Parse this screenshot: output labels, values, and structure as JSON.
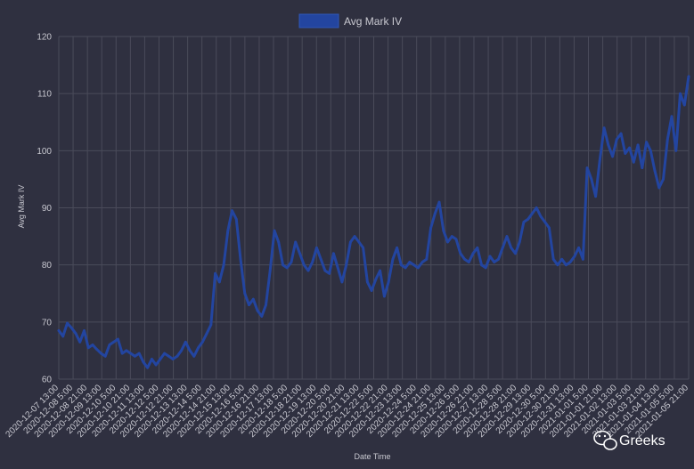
{
  "chart_data": {
    "type": "line",
    "title": "",
    "xlabel": "Date Time",
    "ylabel": "Avg Mark IV",
    "ylim": [
      60,
      120
    ],
    "yticks": [
      60,
      70,
      80,
      90,
      100,
      110,
      120
    ],
    "grid": true,
    "legend_position": "top-center",
    "x_tick_labels": [
      "2020-12-07 13:00",
      "2020-12-08 5:00",
      "2020-12-08 21:00",
      "2020-12-09 13:00",
      "2020-12-10 5:00",
      "2020-12-10 21:00",
      "2020-12-11 13:00",
      "2020-12-12 5:00",
      "2020-12-12 21:00",
      "2020-12-13 13:00",
      "2020-12-14 5:00",
      "2020-12-14 21:00",
      "2020-12-15 13:00",
      "2020-12-16 5:00",
      "2020-12-16 21:00",
      "2020-12-17 13:00",
      "2020-12-18 5:00",
      "2020-12-18 21:00",
      "2020-12-19 13:00",
      "2020-12-20 5:00",
      "2020-12-20 21:00",
      "2020-12-21 13:00",
      "2020-12-22 5:00",
      "2020-12-22 21:00",
      "2020-12-23 13:00",
      "2020-12-24 5:00",
      "2020-12-24 21:00",
      "2020-12-25 13:00",
      "2020-12-26 5:00",
      "2020-12-26 21:00",
      "2020-12-27 13:00",
      "2020-12-28 5:00",
      "2020-12-28 21:00",
      "2020-12-29 13:00",
      "2020-12-30 5:00",
      "2020-12-30 21:00",
      "2020-12-31 13:00",
      "2021-01-01 5:00",
      "2021-01-01 21:00",
      "2021-01-02 13:00",
      "2021-01-03 5:00",
      "2021-01-03 21:00",
      "2021-01-04 13:00",
      "2021-01-05 5:00",
      "2021-01-05 21:00"
    ],
    "series": [
      {
        "name": "Avg Mark IV",
        "color": "#2345a0",
        "values": [
          68.5,
          67.5,
          69.8,
          69.0,
          68.0,
          66.5,
          68.5,
          65.5,
          66.0,
          65.2,
          64.5,
          64.0,
          66.0,
          66.5,
          67.0,
          64.5,
          65.0,
          64.5,
          64.0,
          64.5,
          63.0,
          62.0,
          63.5,
          62.5,
          63.5,
          64.5,
          64.0,
          63.5,
          64.0,
          65.0,
          66.5,
          65.0,
          64.0,
          65.5,
          66.5,
          68.0,
          69.5,
          78.5,
          77.0,
          80.0,
          86.0,
          89.5,
          88.0,
          81.0,
          75.0,
          73.0,
          74.0,
          72.0,
          71.0,
          73.0,
          79.0,
          86.0,
          84.0,
          80.0,
          79.5,
          80.5,
          84.0,
          82.0,
          80.0,
          79.0,
          80.5,
          83.0,
          81.0,
          79.0,
          78.5,
          82.0,
          79.5,
          77.0,
          80.0,
          84.0,
          85.0,
          84.0,
          83.0,
          77.0,
          75.5,
          77.5,
          79.0,
          74.5,
          77.0,
          81.0,
          83.0,
          80.0,
          79.5,
          80.5,
          80.0,
          79.5,
          80.5,
          81.0,
          86.5,
          89.0,
          91.0,
          86.0,
          84.0,
          85.0,
          84.5,
          82.0,
          81.0,
          80.5,
          82.0,
          83.0,
          80.0,
          79.5,
          81.5,
          80.5,
          81.0,
          83.0,
          85.0,
          83.0,
          82.0,
          84.0,
          87.5,
          88.0,
          89.0,
          90.0,
          88.5,
          87.5,
          86.5,
          81.0,
          80.0,
          81.0,
          80.0,
          80.5,
          81.5,
          83.0,
          81.0,
          97.0,
          95.0,
          92.0,
          98.5,
          104.0,
          101.0,
          99.0,
          102.0,
          103.0,
          99.5,
          100.5,
          98.0,
          101.0,
          97.0,
          101.5,
          100.0,
          96.5,
          93.5,
          95.0,
          102.0,
          106.0,
          100.0,
          110.0,
          108.0,
          113.0
        ]
      }
    ]
  },
  "legend": {
    "label": "Avg Mark IV",
    "swatch_color": "#2345a0"
  },
  "watermark": {
    "text": "Greeks"
  },
  "colors": {
    "background": "#2f3040",
    "grid": "#4a4b5a",
    "text": "#c8c8d0",
    "line": "#2345a0"
  }
}
